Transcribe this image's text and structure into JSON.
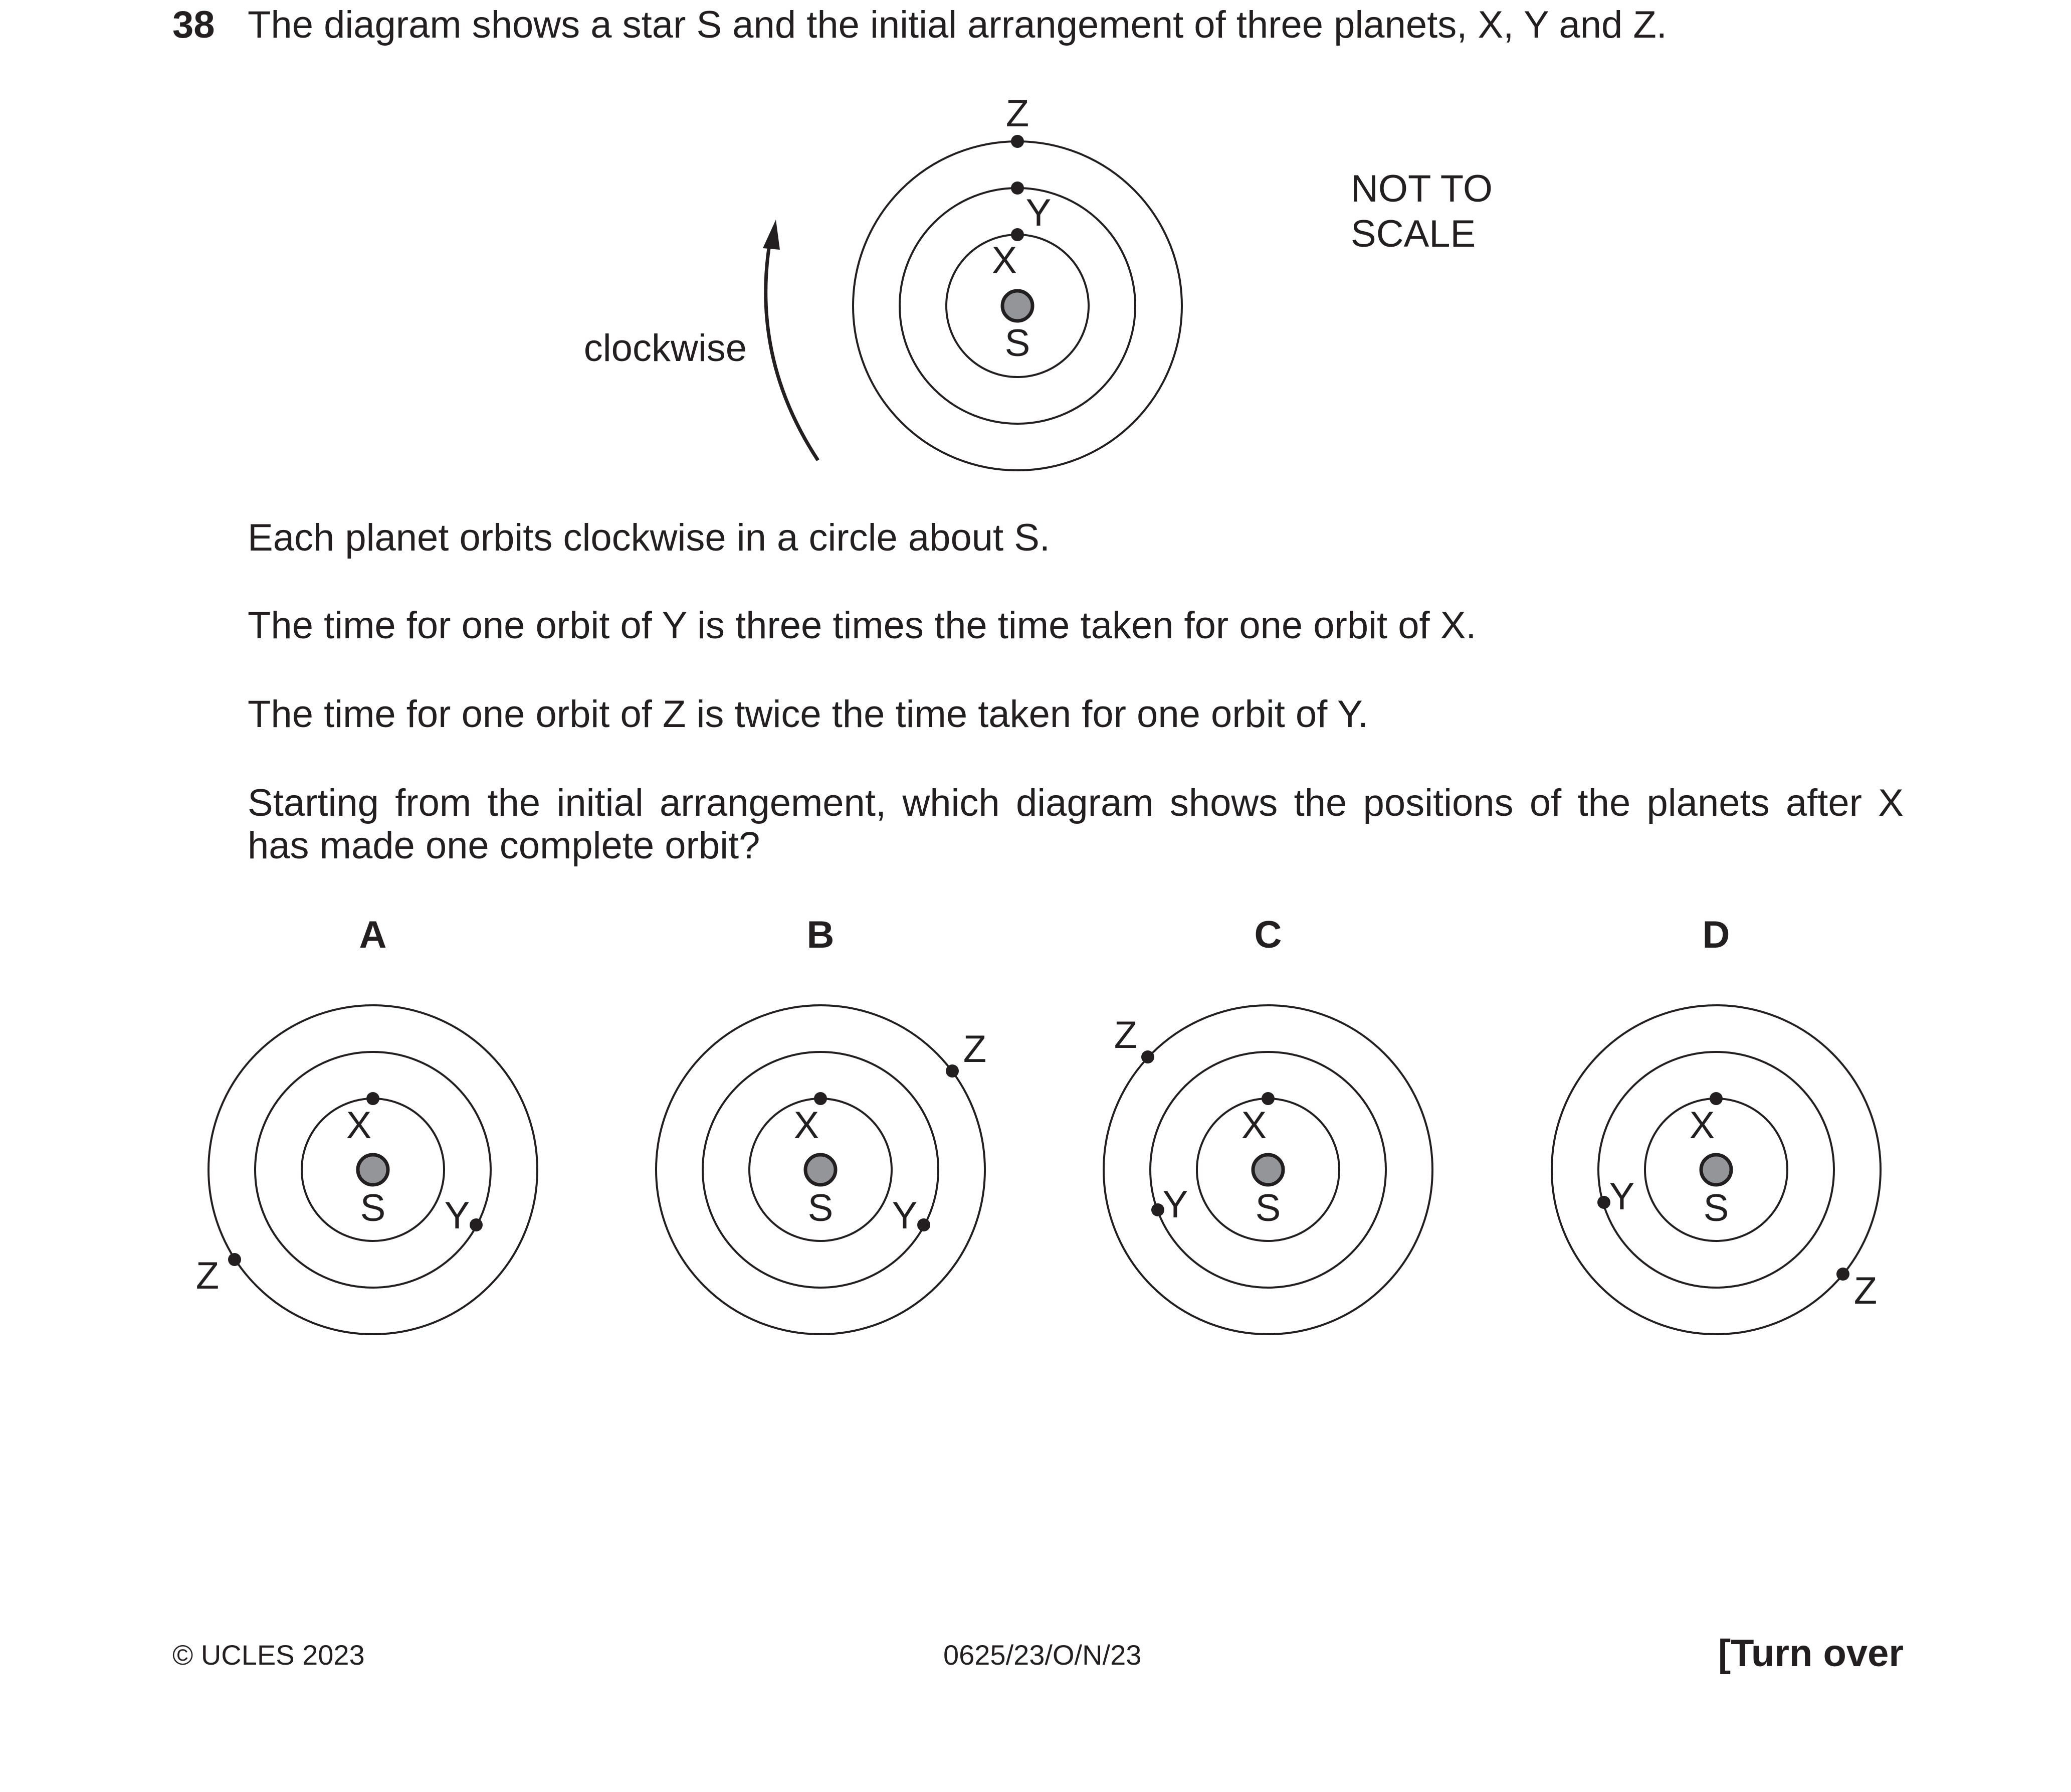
{
  "question": {
    "number": "38",
    "intro": "The diagram shows a star S and the initial arrangement of three planets, X, Y and Z.",
    "paragraphs": {
      "p1": "Each planet orbits clockwise in a circle about S.",
      "p2": "The time for one orbit of Y is three times the time taken for one orbit of X.",
      "p3": "The time for one orbit of Z is twice the time taken for one orbit of Y.",
      "p4_line1": "Starting from the initial arrangement, which diagram shows the positions of the planets after X",
      "p4_line2": "has made one complete orbit?"
    }
  },
  "main_diagram": {
    "direction_label": "clockwise",
    "note_line1": "NOT TO",
    "note_line2": "SCALE",
    "star_label": "S",
    "planet_x": "X",
    "planet_y": "Y",
    "planet_z": "Z"
  },
  "options": {
    "a": {
      "letter": "A",
      "s": "S",
      "x": "X",
      "y": "Y",
      "z": "Z"
    },
    "b": {
      "letter": "B",
      "s": "S",
      "x": "X",
      "y": "Y",
      "z": "Z"
    },
    "c": {
      "letter": "C",
      "s": "S",
      "x": "X",
      "y": "Y",
      "z": "Z"
    },
    "d": {
      "letter": "D",
      "s": "S",
      "x": "X",
      "y": "Y",
      "z": "Z"
    }
  },
  "footer": {
    "copyright": "© UCLES 2023",
    "code": "0625/23/O/N/23",
    "turn_over": "[Turn over"
  },
  "colors": {
    "ink": "#231f20",
    "star_fill": "#939598"
  }
}
